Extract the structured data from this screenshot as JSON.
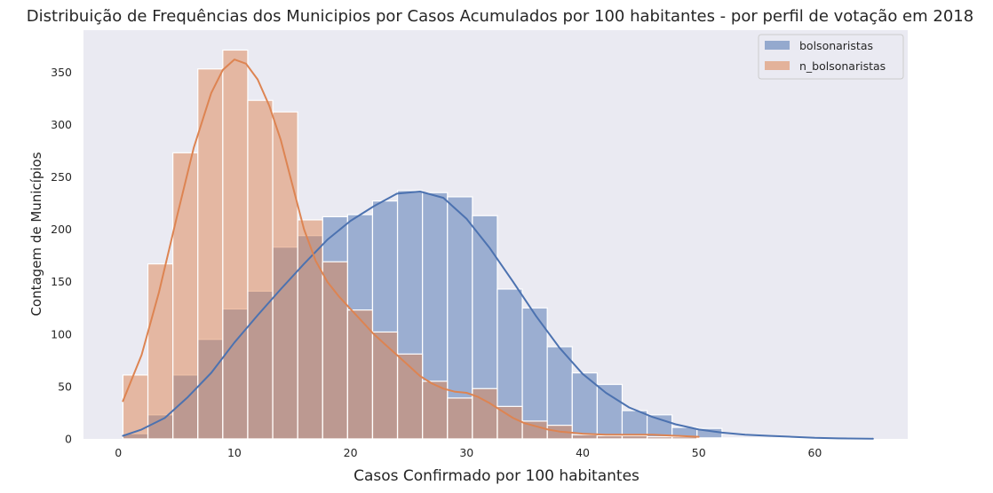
{
  "chart_data": {
    "type": "histogram",
    "title": "Distribuição de Frequências dos Municipios por Casos Acumulados por 100 habitantes - por perfil de votação em 2018",
    "xlabel": "Casos Confirmado por 100 habitantes",
    "ylabel": "Contagem de Municípios",
    "xlim": [
      -3,
      68
    ],
    "ylim": [
      0,
      390
    ],
    "x_ticks": [
      0,
      10,
      20,
      30,
      40,
      50,
      60
    ],
    "y_ticks": [
      0,
      50,
      100,
      150,
      200,
      250,
      300,
      350
    ],
    "grid": false,
    "legend_position": "top-right",
    "bin_edges": [
      0.4,
      2.55,
      4.7,
      6.85,
      9.0,
      11.15,
      13.3,
      15.45,
      17.6,
      19.75,
      21.9,
      24.05,
      26.2,
      28.35,
      30.5,
      32.65,
      34.8,
      36.95,
      39.1,
      41.25,
      43.4,
      45.55,
      47.7,
      49.85,
      52.0,
      54.15,
      56.3,
      58.45,
      60.6,
      62.75,
      64.9
    ],
    "series": [
      {
        "name": "bolsonaristas",
        "color": "#4c72b0",
        "counts": [
          5,
          23,
          61,
          95,
          124,
          141,
          183,
          194,
          212,
          214,
          227,
          237,
          235,
          231,
          213,
          143,
          125,
          88,
          63,
          52,
          27,
          23,
          11,
          10,
          1,
          1,
          1,
          1,
          0,
          0
        ],
        "kde": [
          [
            0.4,
            3
          ],
          [
            2,
            9
          ],
          [
            4,
            20
          ],
          [
            6,
            40
          ],
          [
            8,
            63
          ],
          [
            10,
            92
          ],
          [
            12,
            118
          ],
          [
            14,
            143
          ],
          [
            16,
            167
          ],
          [
            18,
            190
          ],
          [
            20,
            208
          ],
          [
            22,
            222
          ],
          [
            24,
            234
          ],
          [
            26,
            236
          ],
          [
            28,
            230
          ],
          [
            30,
            210
          ],
          [
            32,
            182
          ],
          [
            34,
            150
          ],
          [
            36,
            117
          ],
          [
            38,
            87
          ],
          [
            40,
            62
          ],
          [
            42,
            44
          ],
          [
            44,
            30
          ],
          [
            46,
            21
          ],
          [
            48,
            14
          ],
          [
            50,
            9
          ],
          [
            52,
            6
          ],
          [
            54,
            4
          ],
          [
            56,
            3
          ],
          [
            58,
            2
          ],
          [
            60,
            1
          ],
          [
            62,
            0.5
          ],
          [
            64,
            0.3
          ],
          [
            65,
            0.2
          ]
        ]
      },
      {
        "name": "n_bolsonaristas",
        "color": "#dd8452",
        "counts": [
          61,
          167,
          273,
          353,
          371,
          323,
          312,
          209,
          169,
          123,
          102,
          81,
          55,
          39,
          48,
          31,
          17,
          13,
          4,
          3,
          3,
          2,
          2,
          1,
          0,
          0,
          0,
          0,
          0,
          1
        ],
        "kde": [
          [
            0.4,
            36
          ],
          [
            2,
            80
          ],
          [
            3.5,
            140
          ],
          [
            5,
            210
          ],
          [
            6.5,
            278
          ],
          [
            8,
            330
          ],
          [
            9,
            352
          ],
          [
            10,
            362
          ],
          [
            11,
            358
          ],
          [
            12,
            343
          ],
          [
            13,
            318
          ],
          [
            14,
            285
          ],
          [
            15,
            242
          ],
          [
            16,
            200
          ],
          [
            17,
            170
          ],
          [
            18,
            150
          ],
          [
            19,
            136
          ],
          [
            20,
            124
          ],
          [
            21,
            112
          ],
          [
            22,
            100
          ],
          [
            23,
            90
          ],
          [
            24,
            80
          ],
          [
            25,
            70
          ],
          [
            26,
            60
          ],
          [
            27,
            53
          ],
          [
            28,
            48
          ],
          [
            29,
            45
          ],
          [
            30,
            44
          ],
          [
            31,
            40
          ],
          [
            32,
            34
          ],
          [
            33,
            27
          ],
          [
            34,
            20
          ],
          [
            35,
            15
          ],
          [
            36,
            12
          ],
          [
            37,
            9
          ],
          [
            38,
            7
          ],
          [
            40,
            5
          ],
          [
            42,
            4
          ],
          [
            44,
            4
          ],
          [
            46,
            4
          ],
          [
            48,
            3
          ],
          [
            50,
            2
          ]
        ]
      }
    ]
  }
}
